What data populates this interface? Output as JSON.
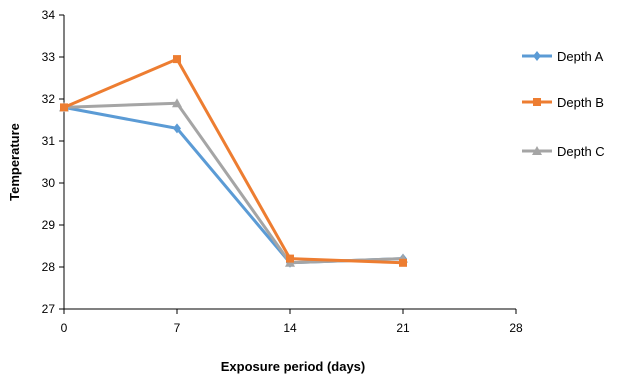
{
  "chart_data": {
    "type": "line",
    "xlabel": "Exposure period (days)",
    "ylabel": "Temperature",
    "x": [
      0,
      7,
      14,
      21
    ],
    "xlim": [
      0,
      28
    ],
    "xticks": [
      0,
      7,
      14,
      21,
      28
    ],
    "ylim": [
      27,
      34
    ],
    "yticks": [
      27,
      28,
      29,
      30,
      31,
      32,
      33,
      34
    ],
    "grid": false,
    "legend_position": "right",
    "series": [
      {
        "name": "Depth A",
        "values": [
          31.8,
          31.3,
          28.1,
          28.2
        ],
        "color": "#5b9bd5",
        "marker": "diamond"
      },
      {
        "name": "Depth B",
        "values": [
          31.8,
          32.95,
          28.2,
          28.1
        ],
        "color": "#ed7d31",
        "marker": "square"
      },
      {
        "name": "Depth C",
        "values": [
          31.8,
          31.9,
          28.1,
          28.2
        ],
        "color": "#a5a5a5",
        "marker": "triangle"
      }
    ]
  }
}
